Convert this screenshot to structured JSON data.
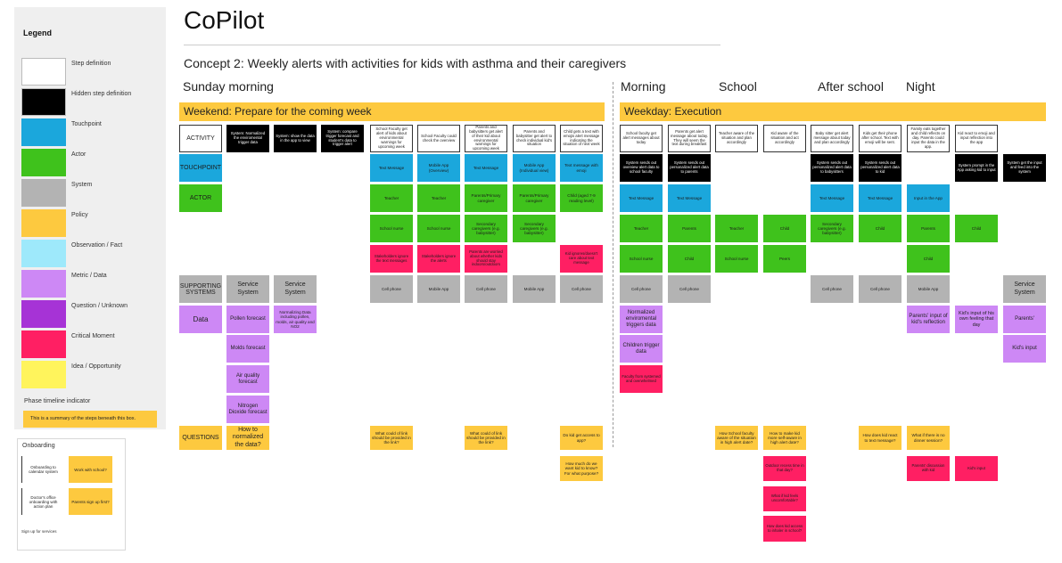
{
  "legend": {
    "title": "Legend",
    "items": [
      {
        "label": "Step definition",
        "color": "#ffffff"
      },
      {
        "label": "Hidden step definition",
        "color": "#000000"
      },
      {
        "label": "Touchpoint",
        "color": "#1ba7dc"
      },
      {
        "label": "Actor",
        "color": "#3fc21c"
      },
      {
        "label": "System",
        "color": "#b3b3b3"
      },
      {
        "label": "Policy",
        "color": "#fdc93f"
      },
      {
        "label": "Observation / Fact",
        "color": "#9ee9fb"
      },
      {
        "label": "Metric / Data",
        "color": "#cd88f5"
      },
      {
        "label": "Question / Unknown",
        "color": "#a633d6"
      },
      {
        "label": "Critical Moment",
        "color": "#ff1f63"
      },
      {
        "label": "Idea / Opportunity",
        "color": "#fff45c"
      }
    ],
    "phase_indicator_label": "Phase timeline indicator",
    "phase_indicator_text": "This is a summary of the steps beneath this box."
  },
  "onboarding": {
    "title": "Onboarding",
    "card1": "Onboarding to calendar system",
    "note1": "Work with school?",
    "card2": "Doctor's office onboarding with action plan",
    "note2": "Parents sign up first?",
    "plain": "Sign up for services"
  },
  "header": {
    "title": "CoPilot",
    "subtitle": "Concept 2: Weekly alerts with activities for kids with asthma and their caregivers"
  },
  "sections": {
    "sunday": "Sunday morning",
    "morning": "Morning",
    "school": "School",
    "after_school": "After school",
    "night": "Night"
  },
  "phases": {
    "weekend": "Weekend: Prepare for the coming week",
    "weekday": "Weekday: Execution"
  },
  "row_labels": {
    "activity": "ACTIVITY",
    "touchpoint": "TOUCHPOINT",
    "actor": "ACTOR",
    "supporting": "SUPPORTING SYSTEMS",
    "data": "Data",
    "questions": "QUESTIONS"
  },
  "activity": {
    "c1": "System: Normalized the enviromental trigger data",
    "c2": "System: show the data in the app to view",
    "c3": "System: compare trigger forecast and student's data to trigger alert",
    "c5": "School Faculty get alert of kids about environmental warnings for upcoming week",
    "c6": "School Faculty could check the overview",
    "c7": "Parents and babysitters get alert of their kid about environmental warnings for upcoming week",
    "c8": "Parents and babysitter get alert to check individual kid's situation",
    "c9": "Child gets a text with emojis alert message indicating the situation of next week",
    "w1": "School faculty get alert messages about today",
    "w2": "Parents get alert message about today. They will seem the text during breakfast",
    "w3": "Teacher aware of the situation and plan accordingly",
    "w4": "Kid aware of the situation and act accordingly",
    "w5": "Baby sitter get alert message about today and plan accordingly",
    "w6": "Kids get their phone after school. Text with emoji will be sent.",
    "w7": "Family eats together and child reflects on day. Parents could input the data in the app.",
    "w8": "Kid react to emoji and input reflection into the app"
  },
  "touchpoint": {
    "c5": "Text Message",
    "c6": "Mobile App (Overview)",
    "c7": "Text Message",
    "c8": "Mobile App (Individual view)",
    "c9": "Text message with emoji",
    "w1": "System sends out overview alert data to school faculty",
    "w2": "System sends out personalized alert data to parents",
    "w5": "System sends out personalized alert data to babysitters",
    "w6": "System sends out personalized alert data to kid",
    "w8": "System prompt in the App asking kid to input",
    "w9": "System get the input and feed into the system"
  },
  "actor1": {
    "c5": "Teacher",
    "c6": "Teacher",
    "c7": "Parents/Primary caregiver",
    "c8": "Parents/Primary caregiver",
    "c9": "Child (aged 7-9 reading level)",
    "w1": "Text Message",
    "w2": "Text Message",
    "w5": "Text Message",
    "w6": "Text Message",
    "w7": "Input in the App"
  },
  "actor2": {
    "c5": "School nurse",
    "c6": "School nurse",
    "c7": "Secondary caregivers (e.g. babysitter)",
    "c8": "Secondary caregivers (e.g. babysitter)",
    "w1": "Teacher",
    "w2": "Parents",
    "w3": "Teacher",
    "w4": "Child",
    "w5": "Secondary caregivers (e.g. babysitter)",
    "w6": "Child",
    "w7": "Parents",
    "w8": "Child"
  },
  "actor3": {
    "c5": "Stakeholders ignore the text messages",
    "c6": "Stakeholders ignore the alerts",
    "c7": "Parents are worried about whether kids should stay indoors/outdoors",
    "c9": "Kid ignores/doesn't care about text message",
    "w1": "School nurse",
    "w2": "Child",
    "w3": "School nurse",
    "w4": "Peers",
    "w7": "Child"
  },
  "supporting": {
    "c2": "Service System",
    "c3": "Service System",
    "c5": "Cell phone",
    "c6": "Mobile App",
    "c7": "Cell phone",
    "c8": "Mobile App",
    "c9": "Cell phone",
    "w1": "Cell phone",
    "w2": "Cell phone",
    "w5": "Cell phone",
    "w6": "Cell phone",
    "w7": "Mobile App",
    "w9": "Service System"
  },
  "data_rows": {
    "pollen": "Pollen forecast",
    "normalized_1": "Normalizing Data including pollen, molds, air quality and NO2",
    "molds": "Molds forecast",
    "air": "Air quality forecast",
    "no2": "Nitrogen Dioxide forecast",
    "w_env": "Normalized enviromental triggers data",
    "w_children": "Children trigger data",
    "w_faculty": "Faculty from systemed and overwhelmed",
    "w_parents_input": "Parents' input of kid's reflection",
    "w_kids_input": "Kid's input of his own feeling that day",
    "w_parents": "Parents'",
    "w_kid_input": "Kid's input"
  },
  "questions": {
    "c2": "How to normalized the data?",
    "c5": "What could of link should be provided in the link?",
    "c7": "What could of link should be provided in the link?",
    "c9a": "Do kid get access to app?",
    "c9b": "How much do we want kid to know? For what purpose?",
    "w3": "How School faculty aware of the situation in high alert date?",
    "w4a": "How to make kid more self-aware in high alert date?",
    "w4b": "Outdoor recess time in that day?",
    "w4c": "What if kid feels uncomfortable?",
    "w4d": "How does kid access to inhaler in school?",
    "w6": "How does kid react to text message?",
    "w7a": "What if there is no dinner session?",
    "w7b": "Parents' discussion with kid",
    "w8": "Kid's input"
  }
}
